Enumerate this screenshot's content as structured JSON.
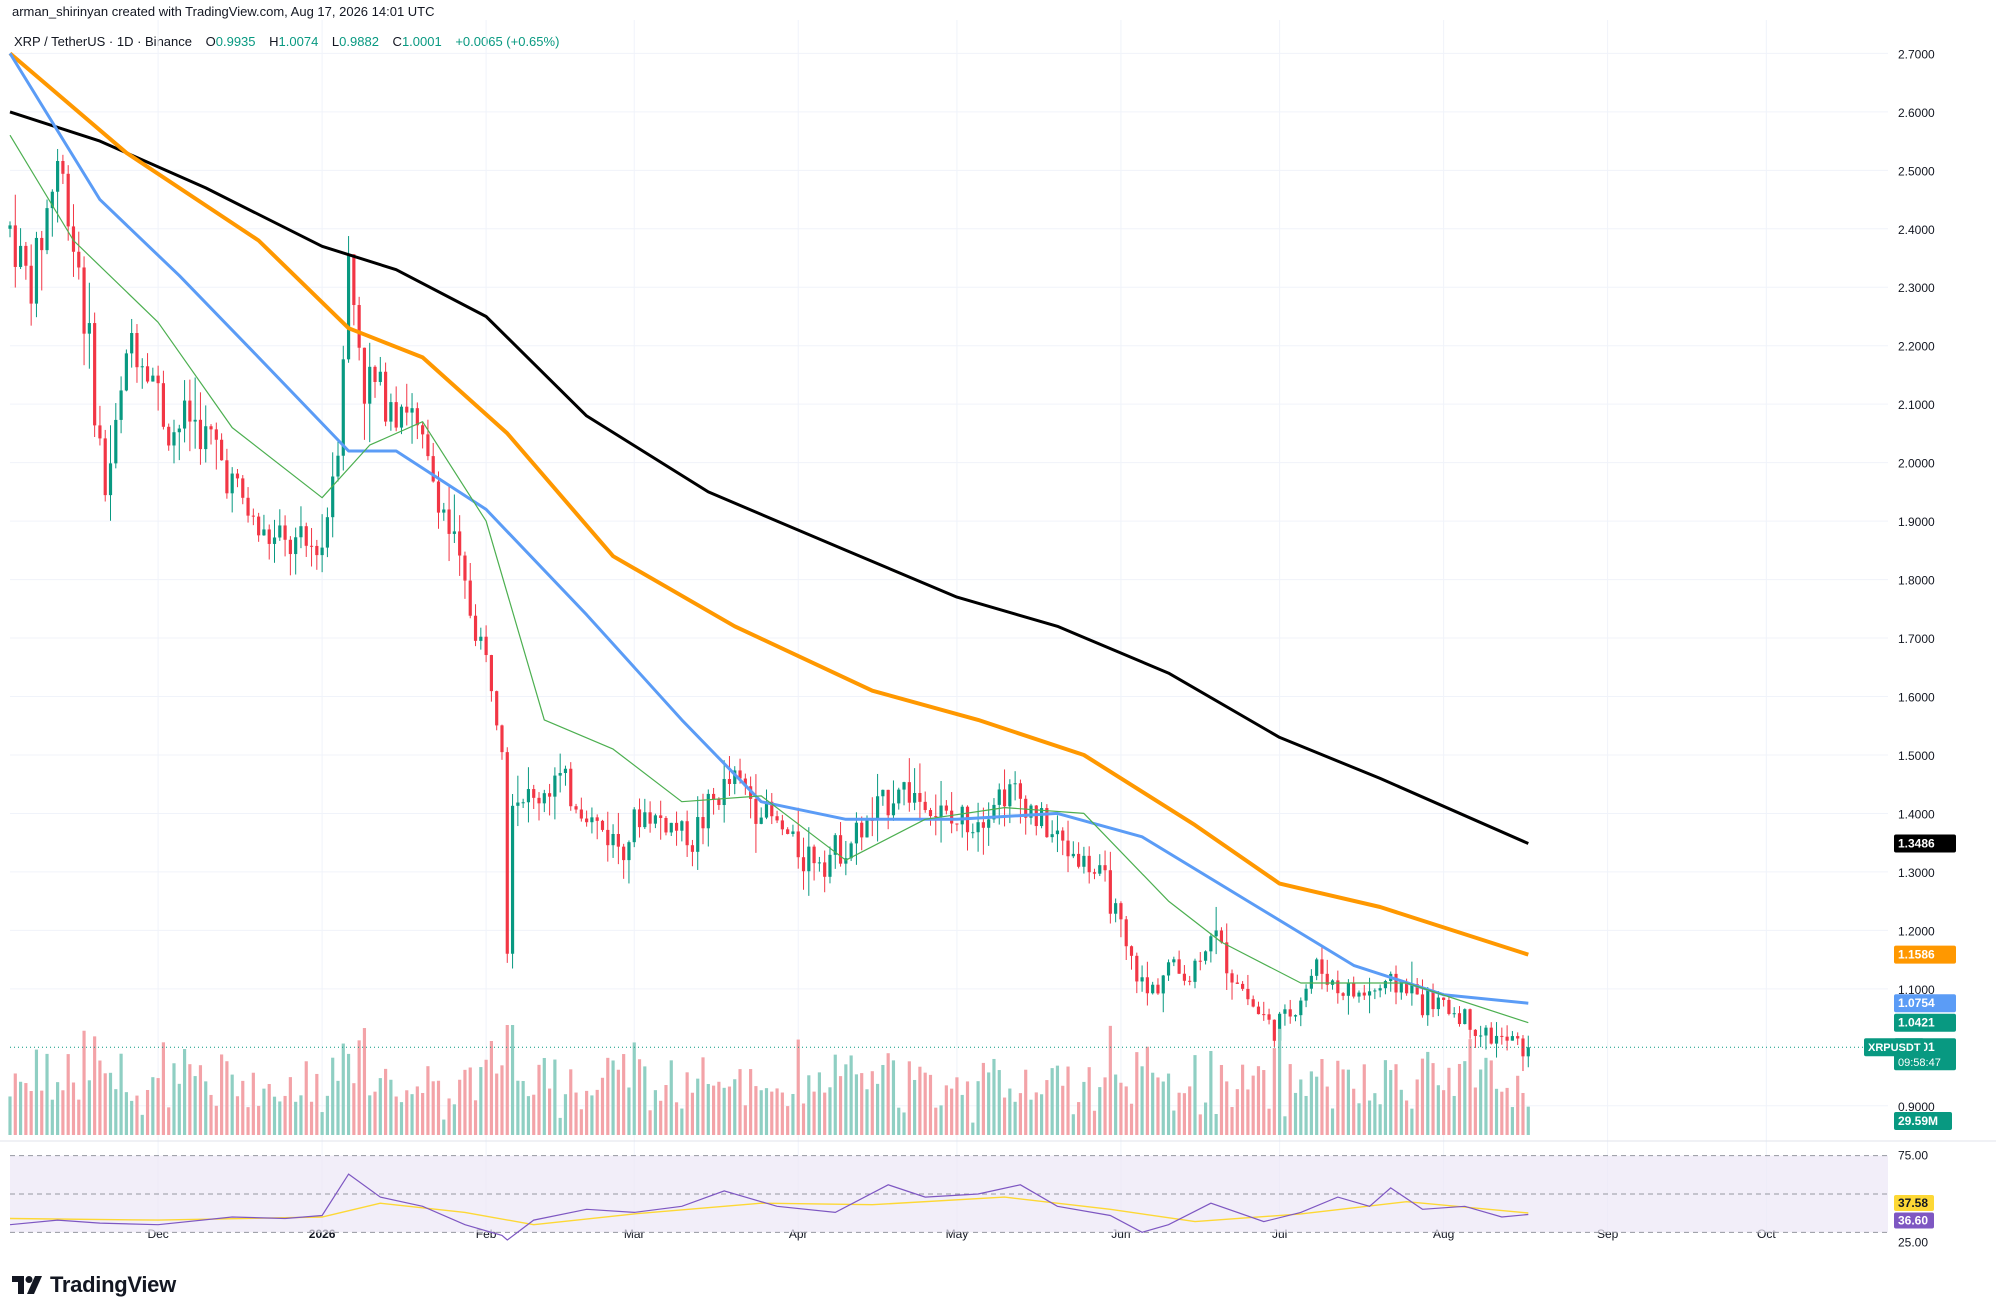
{
  "header": {
    "credit": "arman_shirinyan created with TradingView.com, Aug 17, 2026 14:01 UTC",
    "symbol_line": "XRP / TetherUS · 1D · Binance",
    "open_label": "O",
    "open": "0.9935",
    "high_label": "H",
    "high": "1.0074",
    "low_label": "L",
    "low": "0.9882",
    "close_label": "C",
    "close": "1.0001",
    "change": "+0.0065 (+0.65%)"
  },
  "branding": {
    "logo_text": "TradingView"
  },
  "colors": {
    "up": "#089981",
    "down": "#f23645",
    "vol_up": "#8fcfc3",
    "vol_down": "#f3a3a8",
    "ma_black": "#000000",
    "ma_orange": "#ff9800",
    "ma_blue": "#5b9cf6",
    "ma_green": "#4caf50",
    "rsi_line": "#7e57c2",
    "rsi_ma": "#fdd835",
    "rsi_band": "#ede7f6"
  },
  "chart_data": {
    "type": "candlestick",
    "symbol": "XRPUSDT",
    "ylim": [
      0.85,
      2.74
    ],
    "y_ticks": [
      "2.7000",
      "2.6000",
      "2.5000",
      "2.4000",
      "2.3000",
      "2.2000",
      "2.1000",
      "2.0000",
      "1.9000",
      "1.8000",
      "1.7000",
      "1.6000",
      "1.5000",
      "1.4000",
      "1.3000",
      "1.2000",
      "1.1000",
      "0.9000"
    ],
    "x_ticks": [
      {
        "label": "Dec",
        "date": "2025-12-01"
      },
      {
        "label": "2026",
        "date": "2026-01-01"
      },
      {
        "label": "Feb",
        "date": "2026-02-01"
      },
      {
        "label": "Mar",
        "date": "2026-03-01"
      },
      {
        "label": "Apr",
        "date": "2026-04-01"
      },
      {
        "label": "May",
        "date": "2026-05-01"
      },
      {
        "label": "Jun",
        "date": "2026-06-01"
      },
      {
        "label": "Jul",
        "date": "2026-07-01"
      },
      {
        "label": "Aug",
        "date": "2026-08-01"
      },
      {
        "label": "Sep",
        "date": "2026-09-01"
      },
      {
        "label": "Oct",
        "date": "2026-10-01"
      }
    ],
    "x_range": [
      "2025-11-03",
      "2026-10-24"
    ],
    "price_path": [
      [
        "2025-11-03",
        2.4
      ],
      [
        "2025-11-07",
        2.3
      ],
      [
        "2025-11-12",
        2.52
      ],
      [
        "2025-11-16",
        2.34
      ],
      [
        "2025-11-21",
        1.95
      ],
      [
        "2025-11-26",
        2.22
      ],
      [
        "2025-11-30",
        2.15
      ],
      [
        "2025-12-03",
        2.05
      ],
      [
        "2025-12-07",
        2.08
      ],
      [
        "2025-12-12",
        2.02
      ],
      [
        "2025-12-16",
        1.95
      ],
      [
        "2025-12-20",
        1.88
      ],
      [
        "2025-12-24",
        1.86
      ],
      [
        "2025-12-28",
        1.85
      ],
      [
        "2026-01-01",
        1.86
      ],
      [
        "2026-01-04",
        2.05
      ],
      [
        "2026-01-06",
        2.34
      ],
      [
        "2026-01-09",
        2.14
      ],
      [
        "2026-01-13",
        2.12
      ],
      [
        "2026-01-17",
        2.1
      ],
      [
        "2026-01-20",
        2.02
      ],
      [
        "2026-01-24",
        1.92
      ],
      [
        "2026-01-28",
        1.78
      ],
      [
        "2026-02-01",
        1.66
      ],
      [
        "2026-02-04",
        1.55
      ],
      [
        "2026-02-05",
        1.18
      ],
      [
        "2026-02-06",
        1.44
      ],
      [
        "2026-02-10",
        1.42
      ],
      [
        "2026-02-14",
        1.46
      ],
      [
        "2026-02-18",
        1.42
      ],
      [
        "2026-02-22",
        1.38
      ],
      [
        "2026-02-26",
        1.35
      ],
      [
        "2026-03-03",
        1.4
      ],
      [
        "2026-03-08",
        1.38
      ],
      [
        "2026-03-12",
        1.36
      ],
      [
        "2026-03-16",
        1.42
      ],
      [
        "2026-03-20",
        1.46
      ],
      [
        "2026-03-24",
        1.42
      ],
      [
        "2026-03-28",
        1.38
      ],
      [
        "2026-04-02",
        1.33
      ],
      [
        "2026-04-07",
        1.33
      ],
      [
        "2026-04-12",
        1.36
      ],
      [
        "2026-04-16",
        1.4
      ],
      [
        "2026-04-20",
        1.45
      ],
      [
        "2026-04-25",
        1.42
      ],
      [
        "2026-04-30",
        1.38
      ],
      [
        "2026-05-05",
        1.4
      ],
      [
        "2026-05-10",
        1.44
      ],
      [
        "2026-05-14",
        1.42
      ],
      [
        "2026-05-18",
        1.37
      ],
      [
        "2026-05-22",
        1.34
      ],
      [
        "2026-05-26",
        1.31
      ],
      [
        "2026-05-30",
        1.26
      ],
      [
        "2026-06-02",
        1.16
      ],
      [
        "2026-06-06",
        1.09
      ],
      [
        "2026-06-10",
        1.14
      ],
      [
        "2026-06-14",
        1.12
      ],
      [
        "2026-06-18",
        1.2
      ],
      [
        "2026-06-22",
        1.13
      ],
      [
        "2026-06-26",
        1.07
      ],
      [
        "2026-06-30",
        1.03
      ],
      [
        "2026-07-04",
        1.07
      ],
      [
        "2026-07-08",
        1.14
      ],
      [
        "2026-07-12",
        1.1
      ],
      [
        "2026-07-16",
        1.09
      ],
      [
        "2026-07-20",
        1.1
      ],
      [
        "2026-07-24",
        1.11
      ],
      [
        "2026-07-28",
        1.08
      ],
      [
        "2026-08-01",
        1.07
      ],
      [
        "2026-08-05",
        1.05
      ],
      [
        "2026-08-09",
        1.02
      ],
      [
        "2026-08-13",
        1.01
      ],
      [
        "2026-08-17",
        1.0001
      ]
    ],
    "moving_averages": [
      {
        "color": "#000000",
        "width": 3,
        "path": [
          [
            "2025-11-03",
            2.6
          ],
          [
            "2025-11-20",
            2.55
          ],
          [
            "2025-12-10",
            2.47
          ],
          [
            "2026-01-01",
            2.37
          ],
          [
            "2026-01-15",
            2.33
          ],
          [
            "2026-02-01",
            2.25
          ],
          [
            "2026-02-20",
            2.08
          ],
          [
            "2026-03-15",
            1.95
          ],
          [
            "2026-04-10",
            1.85
          ],
          [
            "2026-05-01",
            1.77
          ],
          [
            "2026-05-20",
            1.72
          ],
          [
            "2026-06-10",
            1.64
          ],
          [
            "2026-07-01",
            1.53
          ],
          [
            "2026-07-20",
            1.46
          ],
          [
            "2026-08-17",
            1.3486
          ]
        ]
      },
      {
        "color": "#ff9800",
        "width": 4,
        "path": [
          [
            "2025-11-03",
            2.7
          ],
          [
            "2025-11-25",
            2.53
          ],
          [
            "2025-12-20",
            2.38
          ],
          [
            "2026-01-06",
            2.23
          ],
          [
            "2026-01-20",
            2.18
          ],
          [
            "2026-02-05",
            2.05
          ],
          [
            "2026-02-25",
            1.84
          ],
          [
            "2026-03-20",
            1.72
          ],
          [
            "2026-04-15",
            1.61
          ],
          [
            "2026-05-05",
            1.56
          ],
          [
            "2026-05-25",
            1.5
          ],
          [
            "2026-06-15",
            1.38
          ],
          [
            "2026-07-01",
            1.28
          ],
          [
            "2026-07-20",
            1.24
          ],
          [
            "2026-08-17",
            1.1586
          ]
        ]
      },
      {
        "color": "#5b9cf6",
        "width": 3,
        "path": [
          [
            "2025-11-03",
            2.7
          ],
          [
            "2025-11-20",
            2.45
          ],
          [
            "2025-12-05",
            2.32
          ],
          [
            "2025-12-20",
            2.18
          ],
          [
            "2026-01-06",
            2.02
          ],
          [
            "2026-01-15",
            2.02
          ],
          [
            "2026-02-01",
            1.92
          ],
          [
            "2026-02-20",
            1.74
          ],
          [
            "2026-03-10",
            1.56
          ],
          [
            "2026-03-25",
            1.42
          ],
          [
            "2026-04-10",
            1.39
          ],
          [
            "2026-05-01",
            1.39
          ],
          [
            "2026-05-20",
            1.4
          ],
          [
            "2026-06-05",
            1.36
          ],
          [
            "2026-06-25",
            1.25
          ],
          [
            "2026-07-15",
            1.14
          ],
          [
            "2026-08-01",
            1.09
          ],
          [
            "2026-08-17",
            1.0754
          ]
        ]
      },
      {
        "color": "#4caf50",
        "width": 1.2,
        "path": [
          [
            "2025-11-03",
            2.56
          ],
          [
            "2025-11-15",
            2.38
          ],
          [
            "2025-12-01",
            2.24
          ],
          [
            "2025-12-15",
            2.06
          ],
          [
            "2026-01-01",
            1.94
          ],
          [
            "2026-01-10",
            2.03
          ],
          [
            "2026-01-20",
            2.07
          ],
          [
            "2026-02-01",
            1.9
          ],
          [
            "2026-02-12",
            1.56
          ],
          [
            "2026-02-25",
            1.51
          ],
          [
            "2026-03-10",
            1.42
          ],
          [
            "2026-03-25",
            1.43
          ],
          [
            "2026-04-10",
            1.32
          ],
          [
            "2026-04-25",
            1.39
          ],
          [
            "2026-05-10",
            1.41
          ],
          [
            "2026-05-25",
            1.4
          ],
          [
            "2026-06-10",
            1.25
          ],
          [
            "2026-06-20",
            1.18
          ],
          [
            "2026-07-05",
            1.11
          ],
          [
            "2026-07-25",
            1.11
          ],
          [
            "2026-08-17",
            1.0421
          ]
        ]
      }
    ],
    "ma_labels": [
      {
        "value": 1.3486,
        "text": "1.3486",
        "bg": "#000000",
        "fg": "#ffffff"
      },
      {
        "value": 1.1586,
        "text": "1.1586",
        "bg": "#ff9800",
        "fg": "#ffffff"
      },
      {
        "value": 1.0754,
        "text": "1.0754",
        "bg": "#5b9cf6",
        "fg": "#ffffff"
      },
      {
        "value": 1.0421,
        "text": "1.0421",
        "bg": "#089981",
        "fg": "#ffffff"
      }
    ],
    "last_price": {
      "value": 1.0001,
      "text": "1.0001",
      "symbol_tag": "XRPUSDT",
      "countdown": "09:58:47"
    },
    "volume": {
      "last_label": "29.59M"
    },
    "rsi": {
      "ylim": [
        20,
        80
      ],
      "levels": [
        75,
        25
      ],
      "level_labels": [
        "75.00",
        "25.00"
      ],
      "rsi_value": "36.60",
      "ma_value": "37.58",
      "rsi_path": [
        [
          "2025-11-03",
          30
        ],
        [
          "2025-11-12",
          33
        ],
        [
          "2025-11-20",
          31
        ],
        [
          "2025-12-01",
          30
        ],
        [
          "2025-12-15",
          35
        ],
        [
          "2025-12-25",
          34
        ],
        [
          "2026-01-01",
          36
        ],
        [
          "2026-01-06",
          63
        ],
        [
          "2026-01-12",
          48
        ],
        [
          "2026-01-20",
          42
        ],
        [
          "2026-01-28",
          30
        ],
        [
          "2026-02-04",
          23
        ],
        [
          "2026-02-05",
          20
        ],
        [
          "2026-02-10",
          33
        ],
        [
          "2026-02-20",
          40
        ],
        [
          "2026-03-01",
          38
        ],
        [
          "2026-03-10",
          42
        ],
        [
          "2026-03-18",
          52
        ],
        [
          "2026-03-28",
          42
        ],
        [
          "2026-04-08",
          38
        ],
        [
          "2026-04-18",
          56
        ],
        [
          "2026-04-25",
          48
        ],
        [
          "2026-05-05",
          50
        ],
        [
          "2026-05-13",
          56
        ],
        [
          "2026-05-20",
          42
        ],
        [
          "2026-05-30",
          36
        ],
        [
          "2026-06-05",
          25
        ],
        [
          "2026-06-10",
          30
        ],
        [
          "2026-06-18",
          44
        ],
        [
          "2026-06-28",
          32
        ],
        [
          "2026-07-05",
          38
        ],
        [
          "2026-07-12",
          48
        ],
        [
          "2026-07-18",
          42
        ],
        [
          "2026-07-22",
          54
        ],
        [
          "2026-07-28",
          40
        ],
        [
          "2026-08-05",
          42
        ],
        [
          "2026-08-12",
          35
        ],
        [
          "2026-08-17",
          36.6
        ]
      ],
      "ma_path": [
        [
          "2025-11-03",
          34
        ],
        [
          "2025-12-01",
          33
        ],
        [
          "2026-01-01",
          35
        ],
        [
          "2026-01-12",
          44
        ],
        [
          "2026-01-28",
          38
        ],
        [
          "2026-02-10",
          30
        ],
        [
          "2026-03-01",
          37
        ],
        [
          "2026-03-25",
          44
        ],
        [
          "2026-04-15",
          43
        ],
        [
          "2026-05-10",
          48
        ],
        [
          "2026-05-30",
          40
        ],
        [
          "2026-06-15",
          32
        ],
        [
          "2026-07-05",
          37
        ],
        [
          "2026-07-25",
          45
        ],
        [
          "2026-08-17",
          37.58
        ]
      ]
    }
  }
}
